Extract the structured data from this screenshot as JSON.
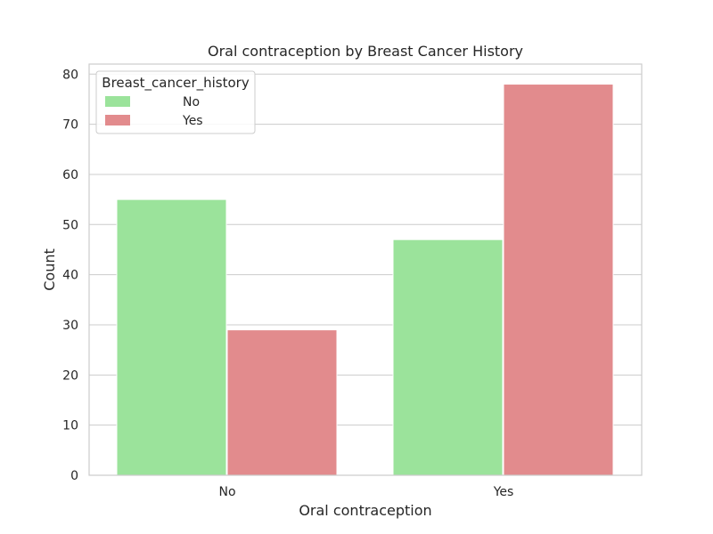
{
  "chart_data": {
    "type": "bar",
    "title": "Oral contraception by Breast Cancer History",
    "xlabel": "Oral contraception",
    "ylabel": "Count",
    "categories": [
      "No",
      "Yes"
    ],
    "series": [
      {
        "name": "No",
        "values": [
          55,
          47
        ],
        "color": "#9be39b"
      },
      {
        "name": "Yes",
        "values": [
          29,
          78
        ],
        "color": "#e28b8d"
      }
    ],
    "ylim": [
      0,
      82
    ],
    "yticks": [
      0,
      10,
      20,
      30,
      40,
      50,
      60,
      70,
      80
    ],
    "grid": true,
    "legend": {
      "title": "Breast_cancer_history",
      "position": "top-left"
    }
  }
}
